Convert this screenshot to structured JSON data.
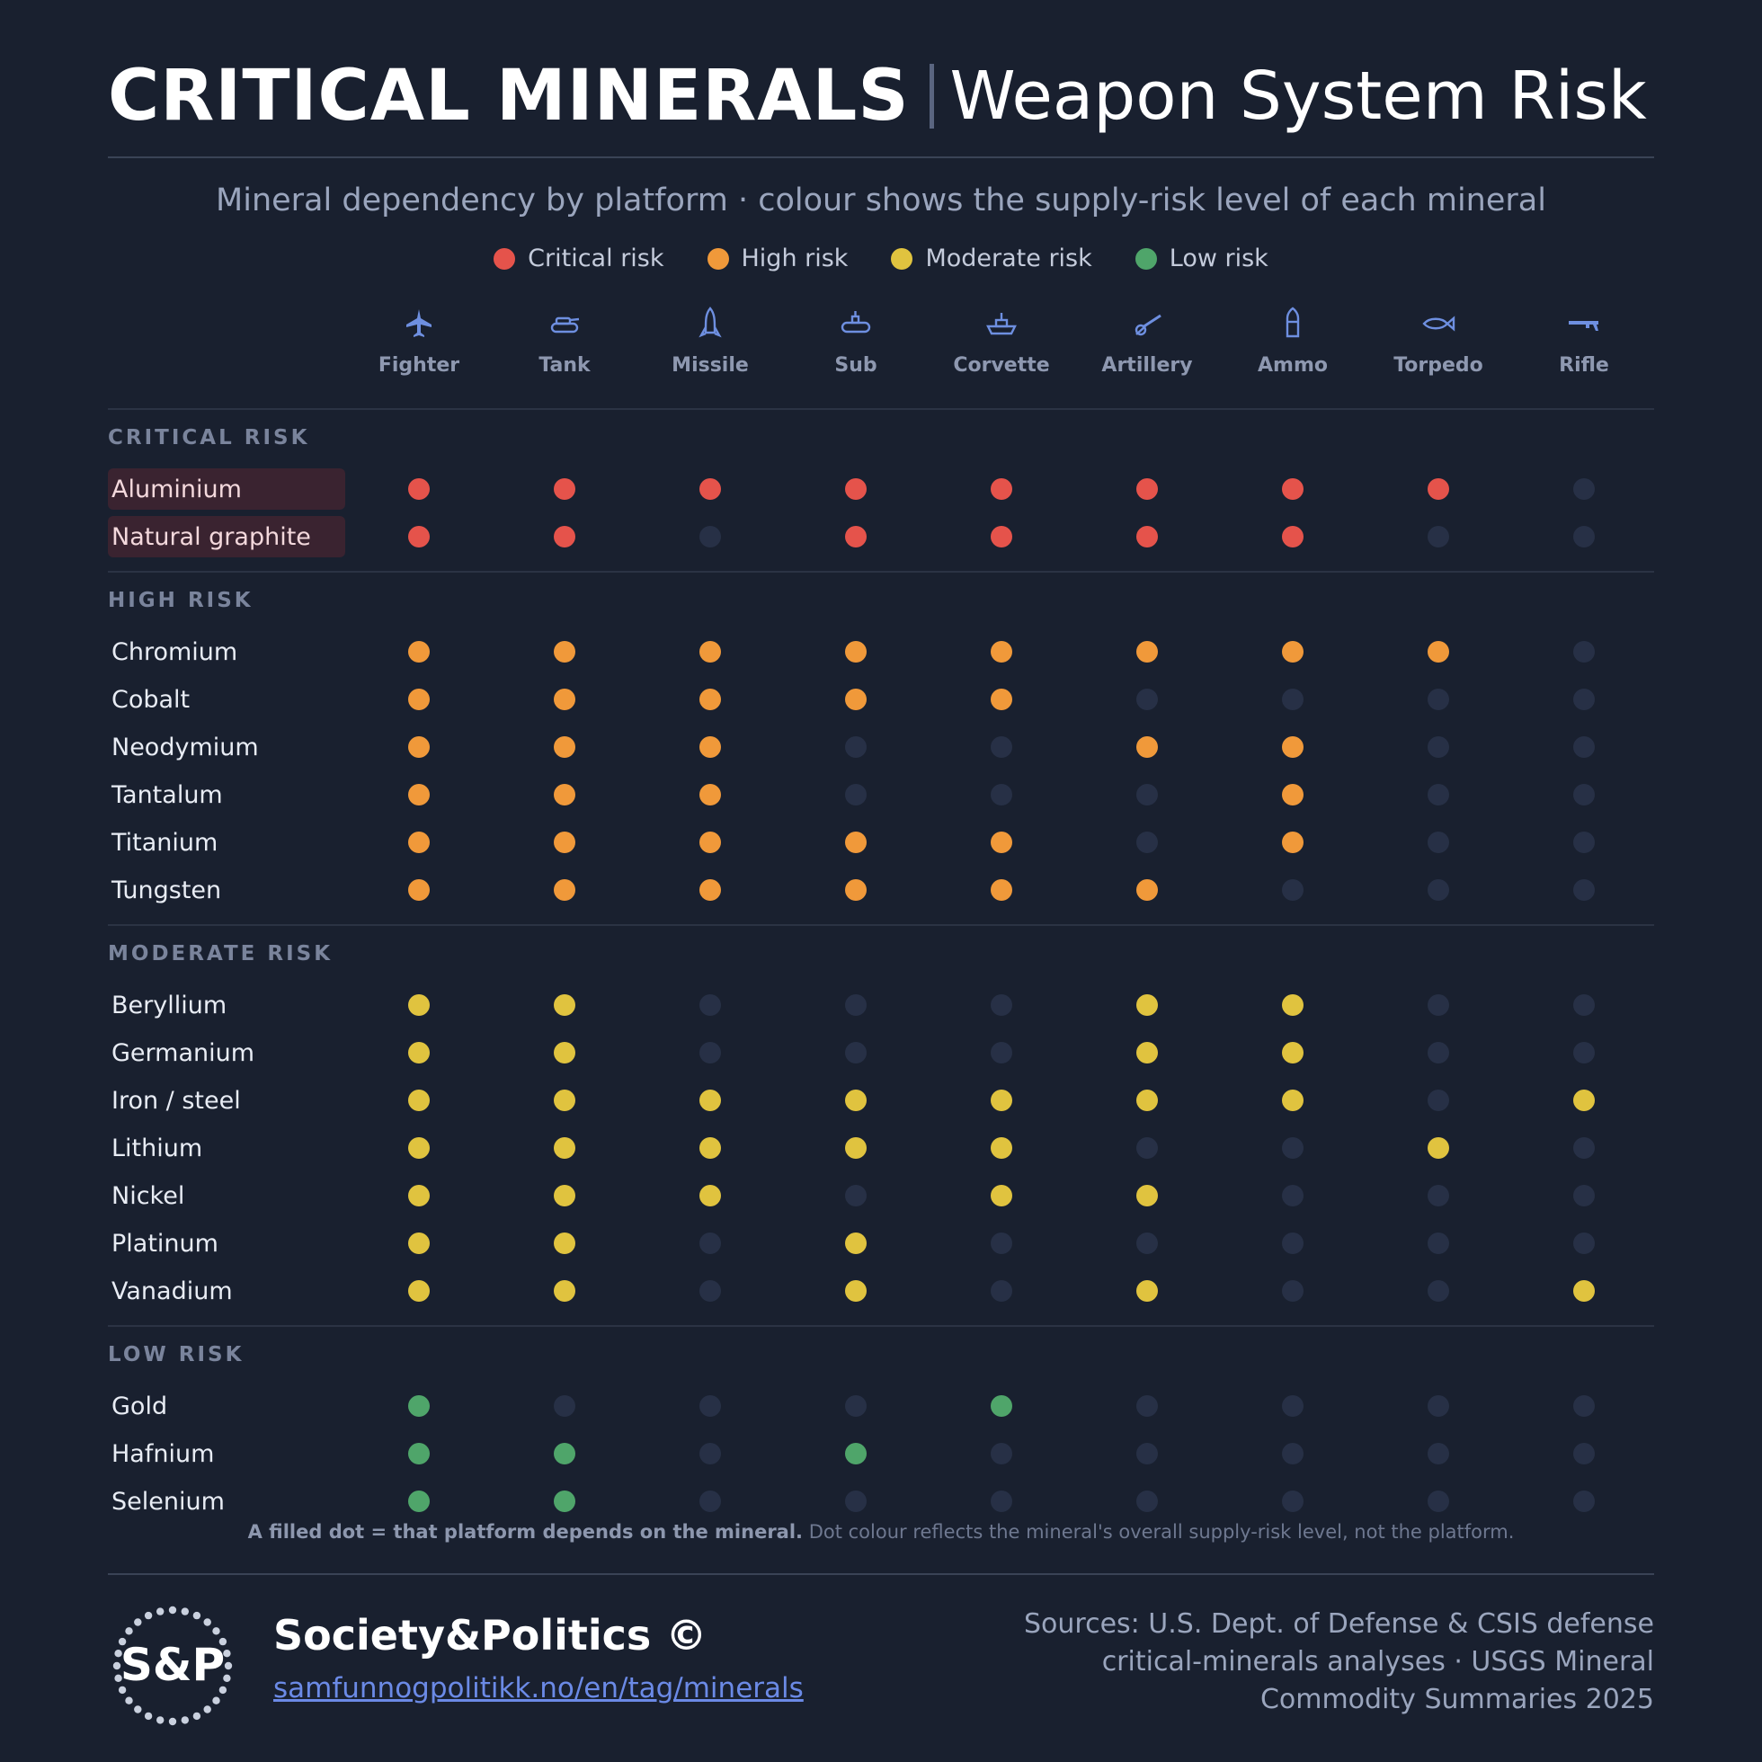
{
  "header": {
    "title_main": "CRITICAL MINERALS",
    "title_sub": "Weapon System Risk",
    "subtitle": "Mineral dependency by platform · colour shows the supply-risk level of each mineral"
  },
  "colors": {
    "critical": "#e5534b",
    "high": "#f0993a",
    "moderate": "#e0c33f",
    "low": "#4fa56a",
    "empty": "#273046",
    "background": "#19202f"
  },
  "legend": [
    {
      "label": "Critical risk",
      "level": "critical"
    },
    {
      "label": "High risk",
      "level": "high"
    },
    {
      "label": "Moderate risk",
      "level": "moderate"
    },
    {
      "label": "Low risk",
      "level": "low"
    }
  ],
  "chart_data": {
    "type": "table",
    "columns": [
      {
        "label": "Fighter",
        "icon": "fighter-jet-icon"
      },
      {
        "label": "Tank",
        "icon": "tank-icon"
      },
      {
        "label": "Missile",
        "icon": "missile-icon"
      },
      {
        "label": "Sub",
        "icon": "submarine-icon"
      },
      {
        "label": "Corvette",
        "icon": "ship-icon"
      },
      {
        "label": "Artillery",
        "icon": "artillery-icon"
      },
      {
        "label": "Ammo",
        "icon": "ammo-icon"
      },
      {
        "label": "Torpedo",
        "icon": "torpedo-icon"
      },
      {
        "label": "Rifle",
        "icon": "rifle-icon"
      }
    ],
    "groups": [
      {
        "label": "CRITICAL RISK",
        "level": "critical",
        "rows": [
          {
            "mineral": "Aluminium",
            "dependency": [
              1,
              1,
              1,
              1,
              1,
              1,
              1,
              1,
              0
            ]
          },
          {
            "mineral": "Natural graphite",
            "dependency": [
              1,
              1,
              0,
              1,
              1,
              1,
              1,
              0,
              0
            ]
          }
        ]
      },
      {
        "label": "HIGH RISK",
        "level": "high",
        "rows": [
          {
            "mineral": "Chromium",
            "dependency": [
              1,
              1,
              1,
              1,
              1,
              1,
              1,
              1,
              0
            ]
          },
          {
            "mineral": "Cobalt",
            "dependency": [
              1,
              1,
              1,
              1,
              1,
              0,
              0,
              0,
              0
            ]
          },
          {
            "mineral": "Neodymium",
            "dependency": [
              1,
              1,
              1,
              0,
              0,
              1,
              1,
              0,
              0
            ]
          },
          {
            "mineral": "Tantalum",
            "dependency": [
              1,
              1,
              1,
              0,
              0,
              0,
              1,
              0,
              0
            ]
          },
          {
            "mineral": "Titanium",
            "dependency": [
              1,
              1,
              1,
              1,
              1,
              0,
              1,
              0,
              0
            ]
          },
          {
            "mineral": "Tungsten",
            "dependency": [
              1,
              1,
              1,
              1,
              1,
              1,
              0,
              0,
              0
            ]
          }
        ]
      },
      {
        "label": "MODERATE RISK",
        "level": "moderate",
        "rows": [
          {
            "mineral": "Beryllium",
            "dependency": [
              1,
              1,
              0,
              0,
              0,
              1,
              1,
              0,
              0
            ]
          },
          {
            "mineral": "Germanium",
            "dependency": [
              1,
              1,
              0,
              0,
              0,
              1,
              1,
              0,
              0
            ]
          },
          {
            "mineral": "Iron / steel",
            "dependency": [
              1,
              1,
              1,
              1,
              1,
              1,
              1,
              0,
              1
            ]
          },
          {
            "mineral": "Lithium",
            "dependency": [
              1,
              1,
              1,
              1,
              1,
              0,
              0,
              1,
              0
            ]
          },
          {
            "mineral": "Nickel",
            "dependency": [
              1,
              1,
              1,
              0,
              1,
              1,
              0,
              0,
              0
            ]
          },
          {
            "mineral": "Platinum",
            "dependency": [
              1,
              1,
              0,
              1,
              0,
              0,
              0,
              0,
              0
            ]
          },
          {
            "mineral": "Vanadium",
            "dependency": [
              1,
              1,
              0,
              1,
              0,
              1,
              0,
              0,
              1
            ]
          }
        ]
      },
      {
        "label": "LOW RISK",
        "level": "low",
        "rows": [
          {
            "mineral": "Gold",
            "dependency": [
              1,
              0,
              0,
              0,
              1,
              0,
              0,
              0,
              0
            ]
          },
          {
            "mineral": "Hafnium",
            "dependency": [
              1,
              1,
              0,
              1,
              0,
              0,
              0,
              0,
              0
            ]
          },
          {
            "mineral": "Selenium",
            "dependency": [
              1,
              1,
              0,
              0,
              0,
              0,
              0,
              0,
              0
            ]
          }
        ]
      }
    ]
  },
  "footnote": {
    "bold": "A filled dot = that platform depends on the mineral.",
    "rest": " Dot colour reflects the mineral's overall supply-risk level, not the platform."
  },
  "footer": {
    "logo_text": "S&P",
    "brand": "Society&Politics ©",
    "link": "samfunnogpolitikk.no/en/tag/minerals",
    "sources": "Sources: U.S. Dept. of Defense & CSIS defense critical-minerals analyses · USGS Mineral Commodity Summaries 2025"
  }
}
